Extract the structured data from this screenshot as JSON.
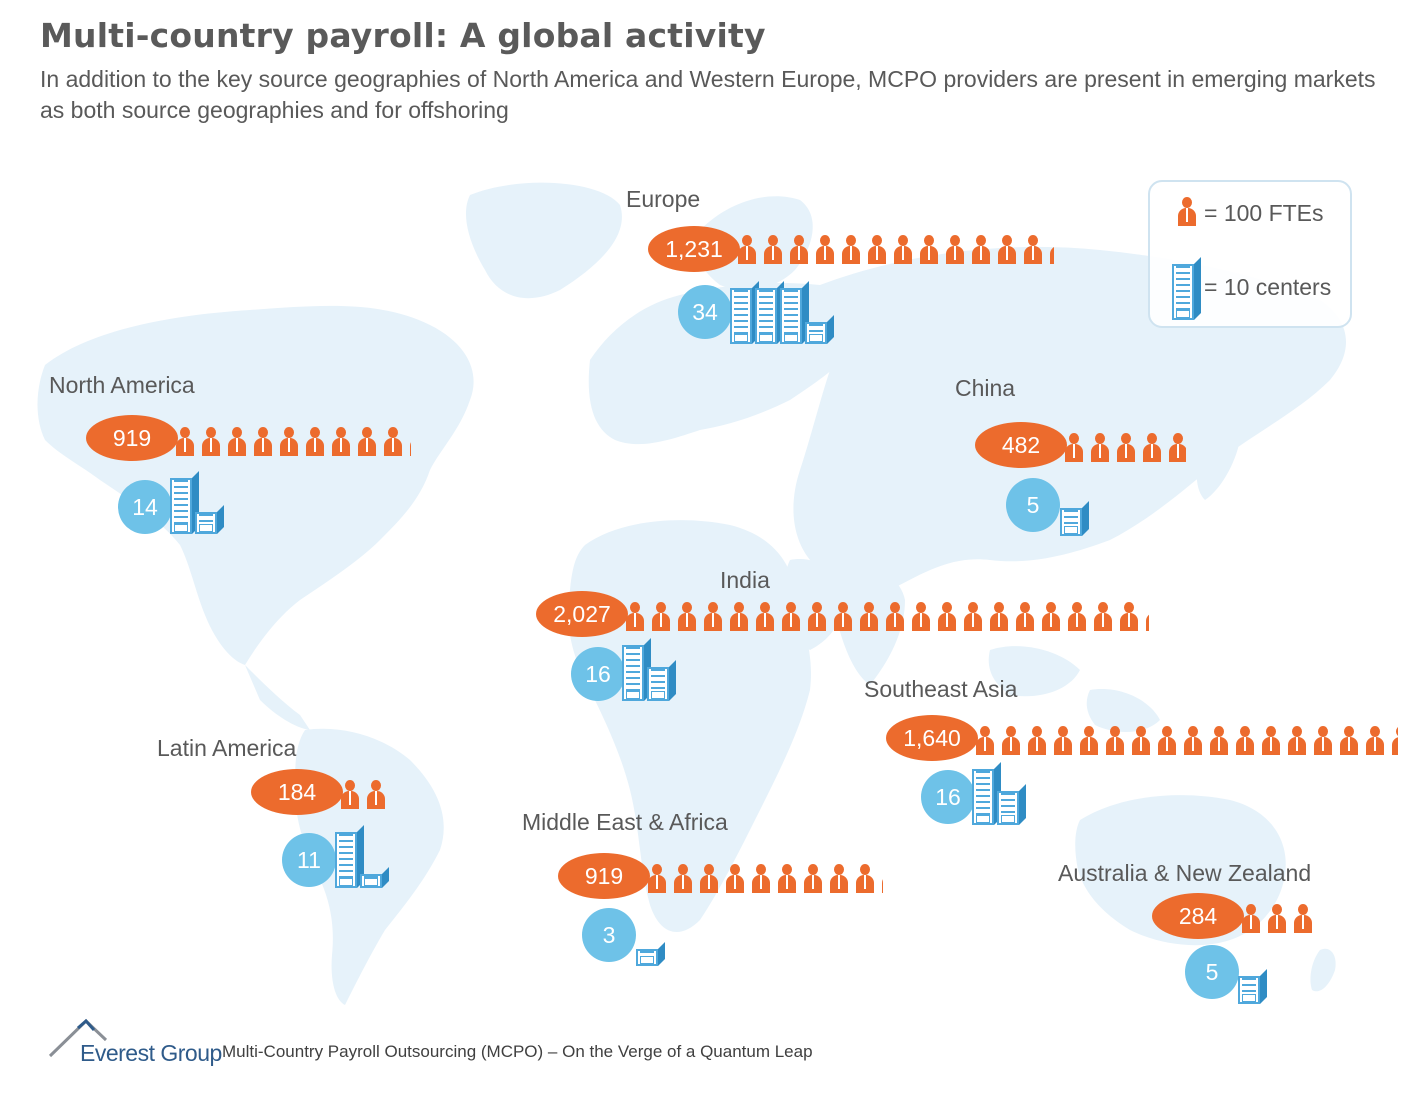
{
  "title": "Multi-country payroll: A global activity",
  "subtitle": "In addition to the key source geographies of North America and Western Europe, MCPO providers are present in emerging markets as both source geographies and for offshoring",
  "colors": {
    "fte": "#ec6b2d",
    "centers": "#6ec2e8",
    "map": "#e6f2fa",
    "text": "#595959"
  },
  "legend": {
    "fte_icon": "person-icon",
    "fte_label": "= 100 FTEs",
    "center_icon": "building-icon",
    "center_label": "= 10 centers"
  },
  "units": {
    "fte_per_icon": 100,
    "centers_per_icon": 10
  },
  "regions": [
    {
      "id": "europe",
      "name": "Europe",
      "fte_label": "1,231",
      "fte": 1231,
      "centers_label": "34",
      "centers": 34
    },
    {
      "id": "north-america",
      "name": "North America",
      "fte_label": "919",
      "fte": 919,
      "centers_label": "14",
      "centers": 14
    },
    {
      "id": "china",
      "name": "China",
      "fte_label": "482",
      "fte": 482,
      "centers_label": "5",
      "centers": 5
    },
    {
      "id": "india",
      "name": "India",
      "fte_label": "2,027",
      "fte": 2027,
      "centers_label": "16",
      "centers": 16
    },
    {
      "id": "southeast-asia",
      "name": "Southeast Asia",
      "fte_label": "1,640",
      "fte": 1640,
      "centers_label": "16",
      "centers": 16
    },
    {
      "id": "latin-america",
      "name": "Latin America",
      "fte_label": "184",
      "fte": 184,
      "centers_label": "11",
      "centers": 11
    },
    {
      "id": "middle-east-africa",
      "name": "Middle East & Africa",
      "fte_label": "919",
      "fte": 919,
      "centers_label": "3",
      "centers": 3
    },
    {
      "id": "australia-nz",
      "name": "Australia & New Zealand",
      "fte_label": "284",
      "fte": 284,
      "centers_label": "5",
      "centers": 5
    }
  ],
  "footer": {
    "logo_text": "Everest Group",
    "caption": "Multi-Country Payroll Outsourcing (MCPO) – On the Verge of a Quantum Leap"
  }
}
